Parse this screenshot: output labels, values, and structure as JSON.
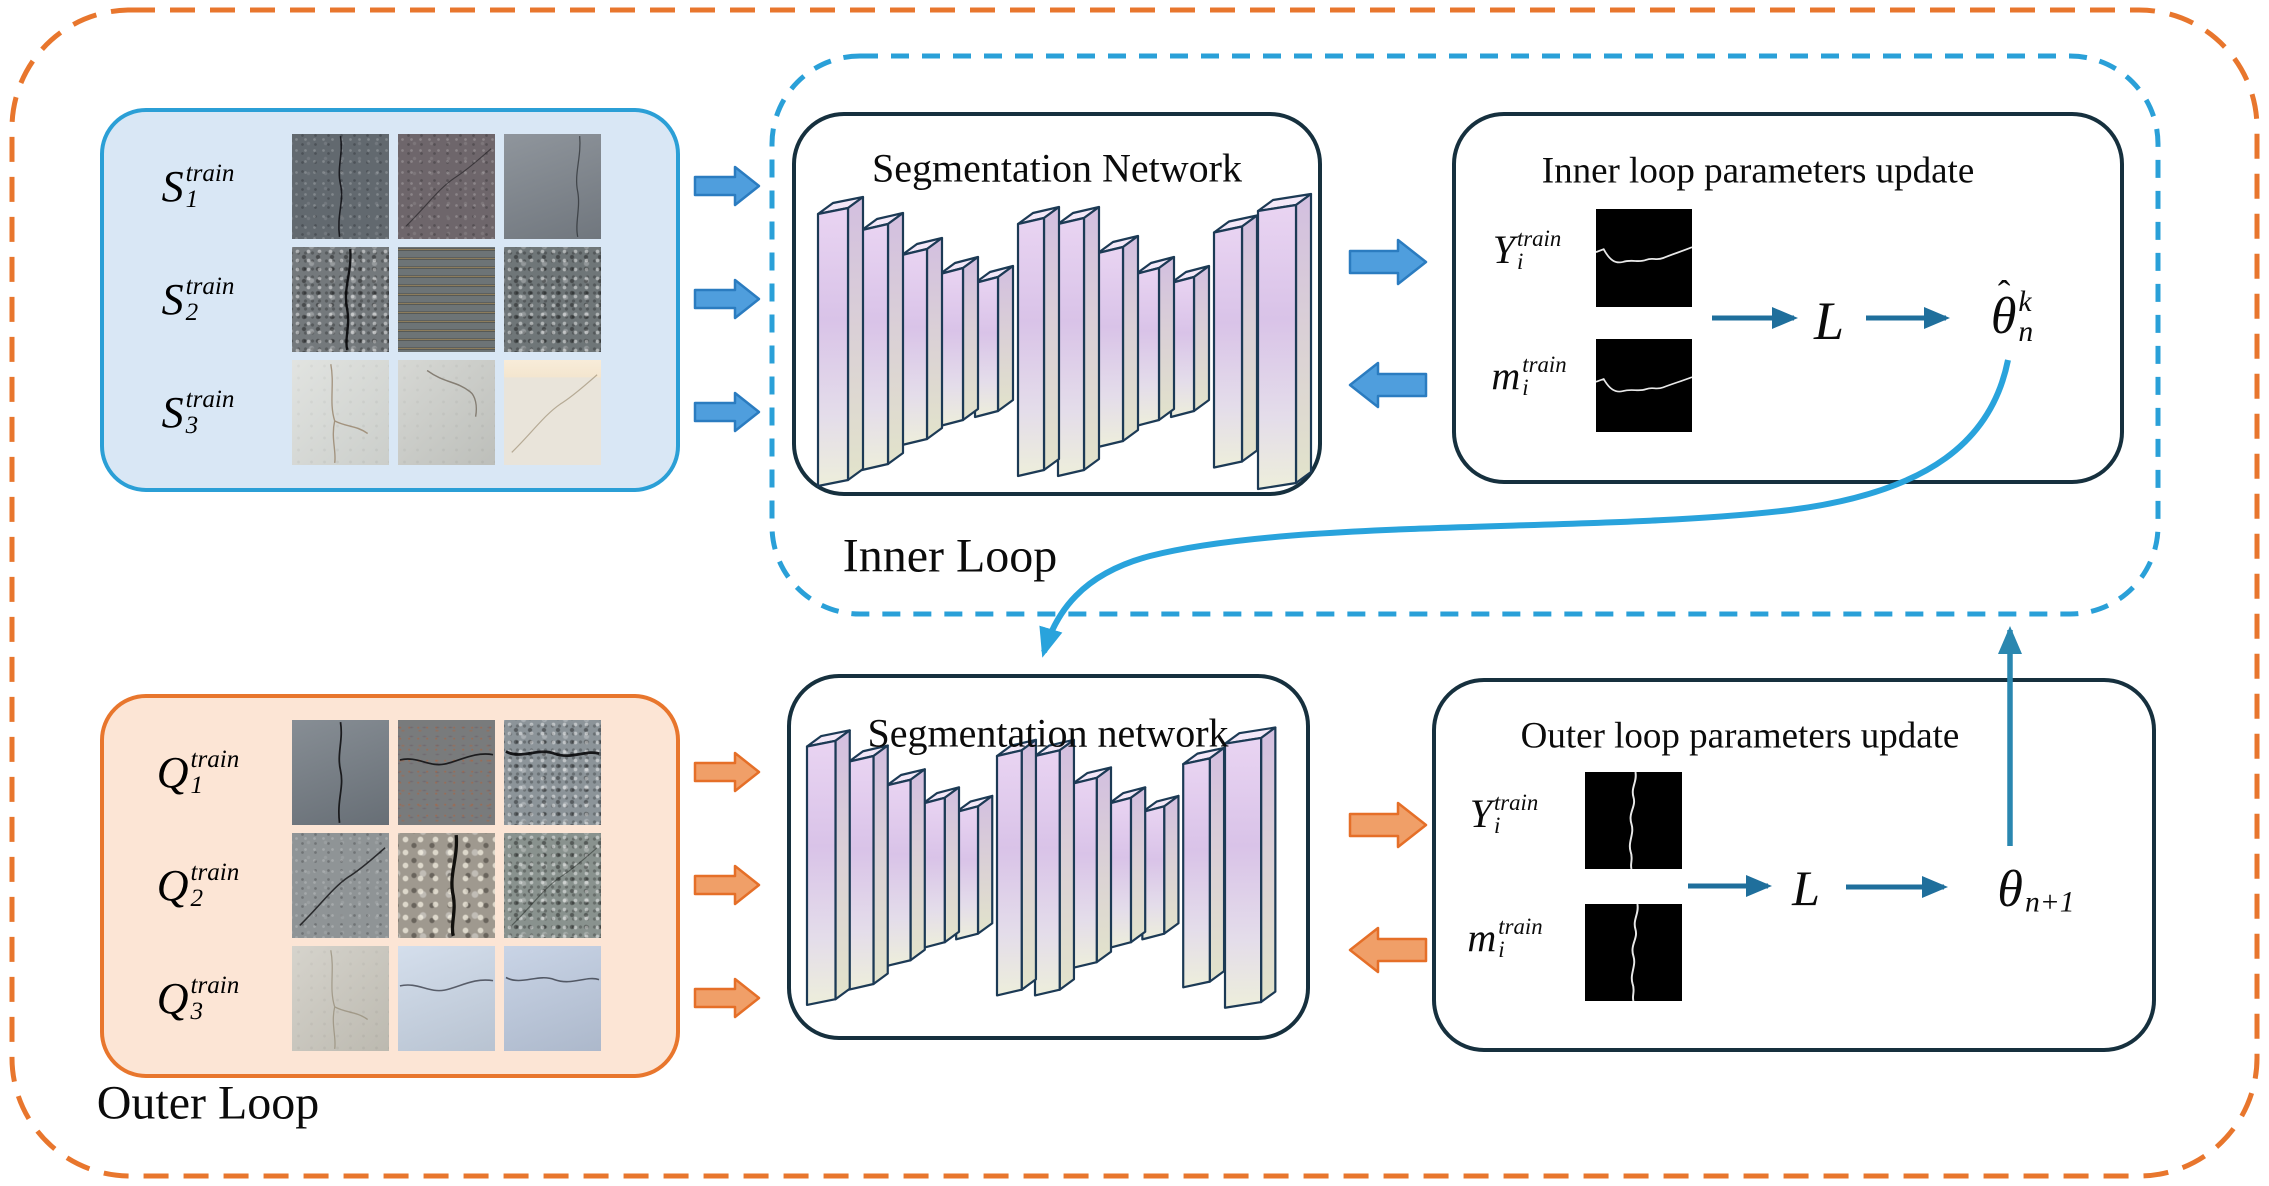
{
  "colors": {
    "outer_loop_dash": "#e8762d",
    "inner_loop_dash": "#2aa0d8",
    "solid_box_border": "#16303e",
    "support_panel_fill": "#d9e7f5",
    "support_panel_border": "#2b9fd6",
    "query_panel_fill": "#fce5d5",
    "query_panel_border": "#e8762d",
    "blue_arrow_fill": "#4f9edd",
    "blue_arrow_border": "#2b7cc0",
    "orange_arrow_fill": "#f09f68",
    "orange_arrow_border": "#e56f28",
    "teal_arrow": "#1f6f9c",
    "update_arrow_up": "#2a87b0",
    "curved_arrow": "#29a3dc"
  },
  "loops": {
    "inner_label": "Inner Loop",
    "outer_label": "Outer Loop"
  },
  "support_panel": {
    "rows": [
      {
        "base": "S",
        "sub": "1",
        "sup": "train"
      },
      {
        "base": "S",
        "sub": "2",
        "sup": "train"
      },
      {
        "base": "S",
        "sub": "3",
        "sup": "train"
      }
    ],
    "grid": {
      "rows": 3,
      "cols": 3
    },
    "tile_colors": [
      [
        "#62696f",
        "#6e666b",
        "#7d848c"
      ],
      [
        "#74797c",
        "#6d7476",
        "#6f7678"
      ],
      [
        "#d6d9d5",
        "#c7c9c4",
        "#e9e4da"
      ]
    ]
  },
  "query_panel": {
    "rows": [
      {
        "base": "Q",
        "sub": "1",
        "sup": "train"
      },
      {
        "base": "Q",
        "sub": "2",
        "sup": "train"
      },
      {
        "base": "Q",
        "sub": "3",
        "sup": "train"
      }
    ],
    "grid": {
      "rows": 3,
      "cols": 3
    },
    "tile_colors": [
      [
        "#737b83",
        "#797b7c",
        "#8c9499"
      ],
      [
        "#8f9496",
        "#9f998f",
        "#89928e"
      ],
      [
        "#c6c3b9",
        "#cdd9e9",
        "#c0cde2"
      ]
    ]
  },
  "seg_network_top": {
    "title": "Segmentation Network"
  },
  "seg_network_bottom": {
    "title": "Segmentation network"
  },
  "inner_update": {
    "title": "Inner loop parameters update",
    "gt_label": {
      "base": "Y",
      "sub": "i",
      "sup": "train"
    },
    "mask_label": {
      "base": "m",
      "sub": "i",
      "sup": "train"
    },
    "loss_symbol": "L",
    "theta": {
      "base": "θ",
      "hat": true,
      "sub": "n",
      "sup": "k"
    }
  },
  "outer_update": {
    "title": "Outer loop parameters update",
    "gt_label": {
      "base": "Y",
      "sub": "i",
      "sup": "train"
    },
    "mask_label": {
      "base": "m",
      "sub": "i",
      "sup": "train"
    },
    "loss_symbol": "L",
    "theta": {
      "base": "θ",
      "hat": false,
      "sub": "n+1",
      "sup": ""
    }
  }
}
